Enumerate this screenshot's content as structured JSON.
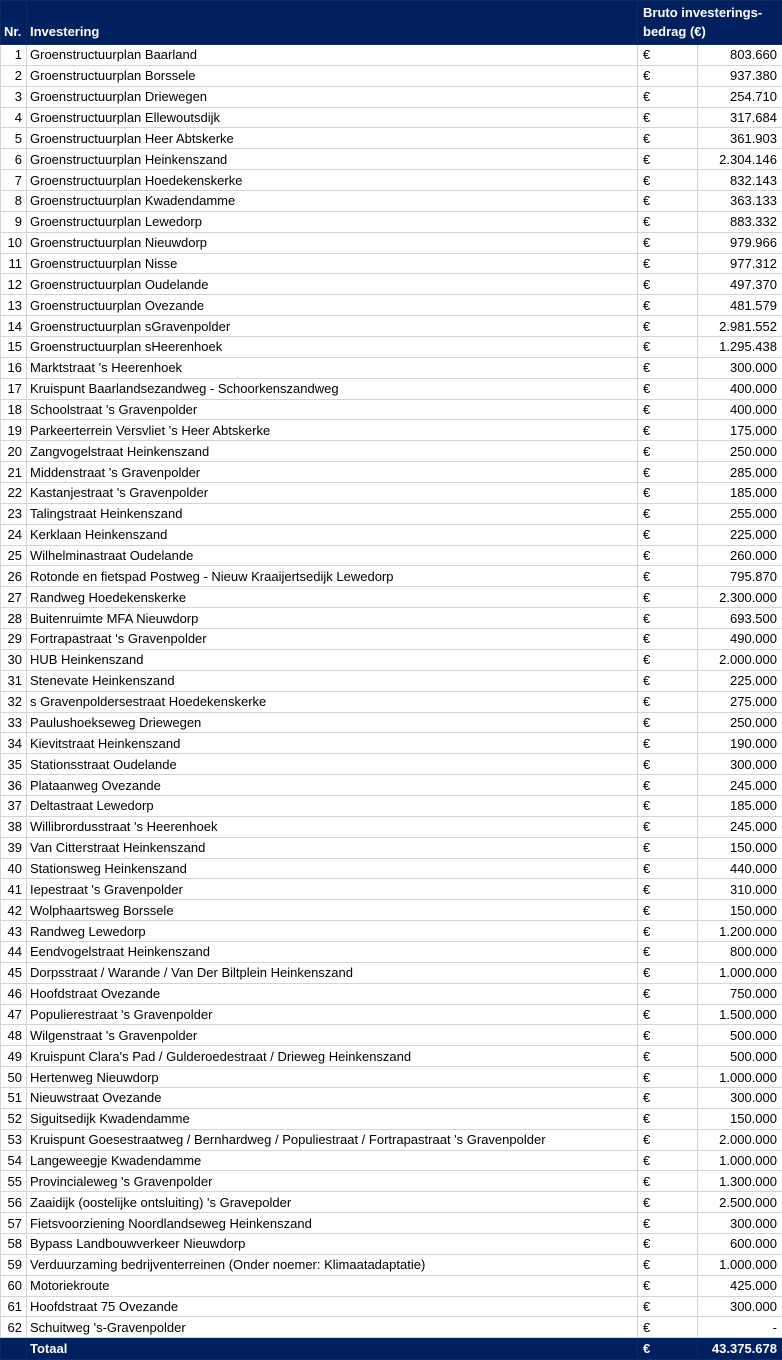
{
  "header": {
    "nr": "Nr.",
    "investment": "Investering",
    "amount": "Bruto investerings-bedrag (€)"
  },
  "currency": "€",
  "colors": {
    "header_bg": "#002060",
    "header_text": "#ffffff"
  },
  "rows": [
    {
      "nr": "1",
      "name": "Groenstructuurplan Baarland",
      "amount": "803.660"
    },
    {
      "nr": "2",
      "name": "Groenstructuurplan Borssele",
      "amount": "937.380"
    },
    {
      "nr": "3",
      "name": "Groenstructuurplan Driewegen",
      "amount": "254.710"
    },
    {
      "nr": "4",
      "name": "Groenstructuurplan Ellewoutsdijk",
      "amount": "317.684"
    },
    {
      "nr": "5",
      "name": "Groenstructuurplan Heer Abtskerke",
      "amount": "361.903"
    },
    {
      "nr": "6",
      "name": "Groenstructuurplan Heinkenszand",
      "amount": "2.304.146"
    },
    {
      "nr": "7",
      "name": "Groenstructuurplan Hoedekenskerke",
      "amount": "832.143"
    },
    {
      "nr": "8",
      "name": "Groenstructuurplan Kwadendamme",
      "amount": "363.133"
    },
    {
      "nr": "9",
      "name": "Groenstructuurplan Lewedorp",
      "amount": "883.332"
    },
    {
      "nr": "10",
      "name": "Groenstructuurplan Nieuwdorp",
      "amount": "979.966"
    },
    {
      "nr": "11",
      "name": "Groenstructuurplan Nisse",
      "amount": "977.312"
    },
    {
      "nr": "12",
      "name": "Groenstructuurplan Oudelande",
      "amount": "497.370"
    },
    {
      "nr": "13",
      "name": "Groenstructuurplan Ovezande",
      "amount": "481.579"
    },
    {
      "nr": "14",
      "name": "Groenstructuurplan sGravenpolder",
      "amount": "2.981.552"
    },
    {
      "nr": "15",
      "name": "Groenstructuurplan sHeerenhoek",
      "amount": "1.295.438"
    },
    {
      "nr": "16",
      "name": "Marktstraat 's Heerenhoek",
      "amount": "300.000"
    },
    {
      "nr": "17",
      "name": "Kruispunt Baarlandsezandweg - Schoorkenszandweg",
      "amount": "400.000"
    },
    {
      "nr": "18",
      "name": "Schoolstraat 's Gravenpolder",
      "amount": "400.000"
    },
    {
      "nr": "19",
      "name": "Parkeerterrein Versvliet 's Heer Abtskerke",
      "amount": "175.000"
    },
    {
      "nr": "20",
      "name": "Zangvogelstraat Heinkenszand",
      "amount": "250.000"
    },
    {
      "nr": "21",
      "name": "Middenstraat 's Gravenpolder",
      "amount": "285.000"
    },
    {
      "nr": "22",
      "name": "Kastanjestraat 's Gravenpolder",
      "amount": "185.000"
    },
    {
      "nr": "23",
      "name": "Talingstraat Heinkenszand",
      "amount": "255.000"
    },
    {
      "nr": "24",
      "name": "Kerklaan Heinkenszand",
      "amount": "225.000"
    },
    {
      "nr": "25",
      "name": "Wilhelminastraat Oudelande",
      "amount": "260.000"
    },
    {
      "nr": "26",
      "name": "Rotonde en fietspad Postweg - Nieuw Kraaijertsedijk Lewedorp",
      "amount": "795.870"
    },
    {
      "nr": "27",
      "name": "Randweg Hoedekenskerke",
      "amount": "2.300.000"
    },
    {
      "nr": "28",
      "name": "Buitenruimte MFA Nieuwdorp",
      "amount": "693.500"
    },
    {
      "nr": "29",
      "name": "Fortrapastraat 's Gravenpolder",
      "amount": "490.000"
    },
    {
      "nr": "30",
      "name": "HUB Heinkenszand",
      "amount": "2.000.000"
    },
    {
      "nr": "31",
      "name": "Stenevate Heinkenszand",
      "amount": "225.000"
    },
    {
      "nr": "32",
      "name": "s Gravenpoldersestraat Hoedekenskerke",
      "amount": "275.000"
    },
    {
      "nr": "33",
      "name": "Paulushoekseweg Driewegen",
      "amount": "250.000"
    },
    {
      "nr": "34",
      "name": "Kievitstraat Heinkenszand",
      "amount": "190.000"
    },
    {
      "nr": "35",
      "name": "Stationsstraat Oudelande",
      "amount": "300.000"
    },
    {
      "nr": "36",
      "name": "Plataanweg Ovezande",
      "amount": "245.000"
    },
    {
      "nr": "37",
      "name": "Deltastraat Lewedorp",
      "amount": "185.000"
    },
    {
      "nr": "38",
      "name": "Willibrordusstraat 's Heerenhoek",
      "amount": "245.000"
    },
    {
      "nr": "39",
      "name": "Van Citterstraat Heinkenszand",
      "amount": "150.000"
    },
    {
      "nr": "40",
      "name": "Stationsweg Heinkenszand",
      "amount": "440.000"
    },
    {
      "nr": "41",
      "name": "Iepestraat 's Gravenpolder",
      "amount": "310.000"
    },
    {
      "nr": "42",
      "name": "Wolphaartsweg Borssele",
      "amount": "150.000"
    },
    {
      "nr": "43",
      "name": "Randweg Lewedorp",
      "amount": "1.200.000"
    },
    {
      "nr": "44",
      "name": "Eendvogelstraat Heinkenszand",
      "amount": "800.000"
    },
    {
      "nr": "45",
      "name": "Dorpsstraat / Warande / Van Der Biltplein Heinkenszand",
      "amount": "1.000.000"
    },
    {
      "nr": "46",
      "name": "Hoofdstraat Ovezande",
      "amount": "750.000"
    },
    {
      "nr": "47",
      "name": "Populierestraat 's Gravenpolder",
      "amount": "1.500.000"
    },
    {
      "nr": "48",
      "name": "Wilgenstraat 's Gravenpolder",
      "amount": "500.000"
    },
    {
      "nr": "49",
      "name": "Kruispunt Clara's Pad / Gulderoedestraat / Drieweg Heinkenszand",
      "amount": "500.000"
    },
    {
      "nr": "50",
      "name": "Hertenweg Nieuwdorp",
      "amount": "1.000.000"
    },
    {
      "nr": "51",
      "name": "Nieuwstraat Ovezande",
      "amount": "300.000"
    },
    {
      "nr": "52",
      "name": "Siguitsedijk Kwadendamme",
      "amount": "150.000"
    },
    {
      "nr": "53",
      "name": "Kruispunt Goesestraatweg / Bernhardweg / Populiestraat / Fortrapastraat 's Gravenpolder",
      "amount": "2.000.000"
    },
    {
      "nr": "54",
      "name": "Langeweegje Kwadendamme",
      "amount": "1.000.000"
    },
    {
      "nr": "55",
      "name": "Provincialeweg 's Gravenpolder",
      "amount": "1.300.000"
    },
    {
      "nr": "56",
      "name": "Zaaidijk (oostelijke ontsluiting) 's Gravepolder",
      "amount": "2.500.000"
    },
    {
      "nr": "57",
      "name": "Fietsvoorziening Noordlandseweg Heinkenszand",
      "amount": "300.000"
    },
    {
      "nr": "58",
      "name": "Bypass Landbouwverkeer Nieuwdorp",
      "amount": "600.000"
    },
    {
      "nr": "59",
      "name": "Verduurzaming bedrijventerreinen (Onder noemer: Klimaatadaptatie)",
      "amount": "1.000.000"
    },
    {
      "nr": "60",
      "name": "Motoriekroute",
      "amount": "425.000"
    },
    {
      "nr": "61",
      "name": "Hoofdstraat 75 Ovezande",
      "amount": "300.000"
    },
    {
      "nr": "62",
      "name": "Schuitweg 's-Gravenpolder",
      "amount": "-"
    }
  ],
  "total": {
    "label": "Totaal",
    "amount": "43.375.678"
  }
}
